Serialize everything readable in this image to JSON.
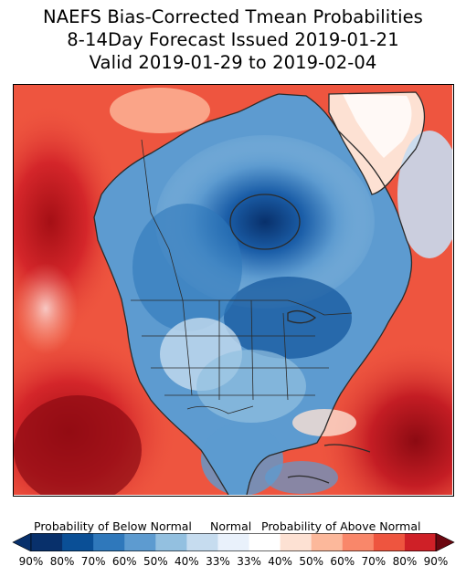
{
  "title": {
    "line1": "NAEFS Bias-Corrected Tmean Probabilities",
    "line2": "8-14Day Forecast Issued 2019-01-21",
    "line3": "Valid 2019-01-29 to 2019-02-04"
  },
  "colorbar": {
    "below_label": "Probability of Below Normal",
    "normal_label": "Normal",
    "above_label": "Probability of Above Normal",
    "bins": [
      {
        "label": "90%",
        "color": "#08306b"
      },
      {
        "label": "80%",
        "color": "#0a4f96"
      },
      {
        "label": "70%",
        "color": "#2f78bb"
      },
      {
        "label": "60%",
        "color": "#5d9bd0"
      },
      {
        "label": "50%",
        "color": "#93c0e0"
      },
      {
        "label": "40%",
        "color": "#c6dcef"
      },
      {
        "label": "33%",
        "color": "#e9f1fb"
      },
      {
        "label": "33%",
        "color": "#ffffff"
      },
      {
        "label": "40%",
        "color": "#fde1d3"
      },
      {
        "label": "50%",
        "color": "#fcb89b"
      },
      {
        "label": "60%",
        "color": "#f9876a"
      },
      {
        "label": "70%",
        "color": "#ee553f"
      },
      {
        "label": "80%",
        "color": "#cf2027"
      },
      {
        "label": "90%",
        "color": "#a50f15"
      },
      {
        "label": "90%",
        "color": "#6b0710"
      }
    ],
    "tick_labels": [
      "90%",
      "80%",
      "70%",
      "60%",
      "50%",
      "40%",
      "33%",
      "33%",
      "40%",
      "50%",
      "60%",
      "70%",
      "80%",
      "90%"
    ]
  },
  "map": {
    "land_outline_color": "#2b2b2b",
    "cold_anomaly_color": "#0a4f96",
    "warm_anomaly_color": "#cf2027"
  }
}
